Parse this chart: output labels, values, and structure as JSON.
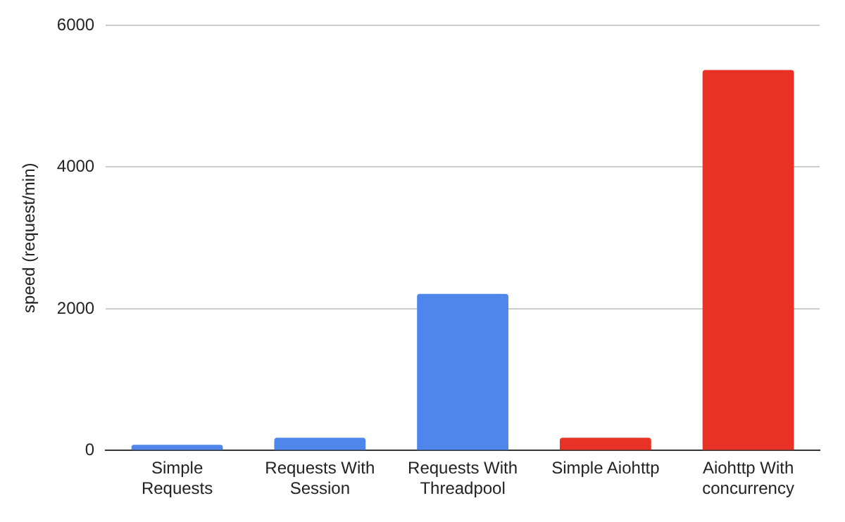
{
  "chart_data": {
    "type": "bar",
    "ylabel": "speed (request/min)",
    "categories": [
      "Simple Requests",
      "Requests With Session",
      "Requests With Threadpool",
      "Simple Aiohttp",
      "Aiohttp With concurrency"
    ],
    "values": [
      80,
      180,
      2210,
      180,
      5370
    ],
    "colors": [
      "#4f86ec",
      "#4f86ec",
      "#4f86ec",
      "#e83226",
      "#e83226"
    ],
    "ylim": [
      0,
      6000
    ],
    "yticks": [
      0,
      2000,
      4000,
      6000
    ],
    "grid": "y",
    "legend": false
  }
}
